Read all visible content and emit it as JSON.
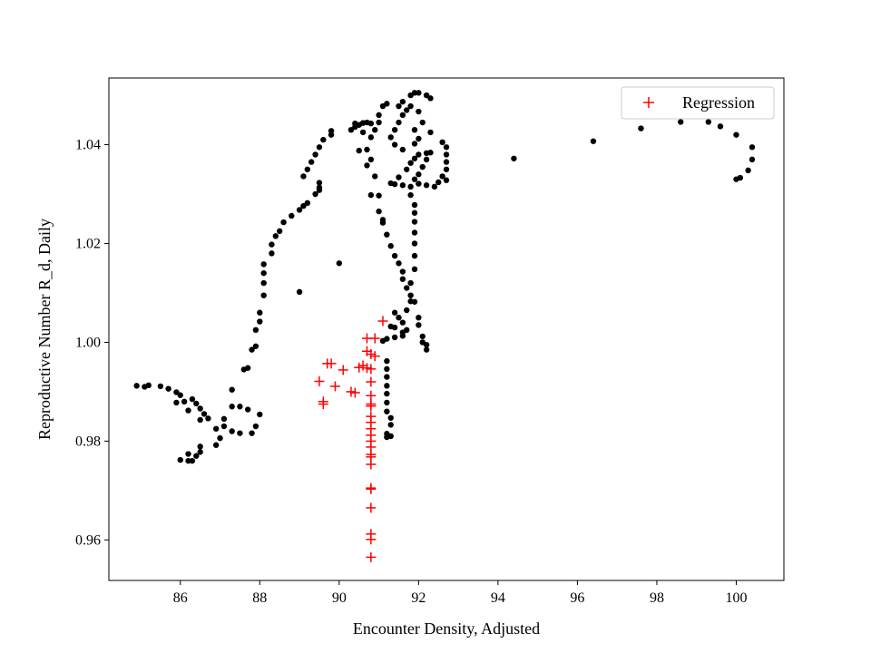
{
  "chart_data": {
    "type": "scatter",
    "title": "",
    "xlabel": "Encounter Density, Adjusted",
    "ylabel": "Reproductive Number R_d, Daily",
    "xlim": [
      84.2,
      101.2
    ],
    "ylim": [
      0.9518,
      1.0535
    ],
    "x_ticks": [
      86,
      88,
      90,
      92,
      94,
      96,
      98,
      100
    ],
    "x_tick_labels": [
      "86",
      "88",
      "90",
      "92",
      "94",
      "96",
      "98",
      "100"
    ],
    "y_ticks": [
      0.96,
      0.98,
      1.0,
      1.02,
      1.04
    ],
    "y_tick_labels": [
      "0.96",
      "0.98",
      "1.00",
      "1.02",
      "1.04"
    ],
    "grid": false,
    "legend": {
      "placement": "top-right",
      "entries": [
        "Regression"
      ]
    },
    "series": [
      {
        "marker": "dot",
        "color": "#000000",
        "points": [
          [
            84.9,
            0.9912
          ],
          [
            85.1,
            0.991
          ],
          [
            85.2,
            0.9913
          ],
          [
            85.5,
            0.9911
          ],
          [
            85.7,
            0.9906
          ],
          [
            85.9,
            0.9899
          ],
          [
            86.0,
            0.9893
          ],
          [
            86.1,
            0.988
          ],
          [
            85.9,
            0.9878
          ],
          [
            86.3,
            0.9885
          ],
          [
            86.4,
            0.9876
          ],
          [
            86.5,
            0.9866
          ],
          [
            86.6,
            0.9855
          ],
          [
            86.7,
            0.9846
          ],
          [
            86.5,
            0.9843
          ],
          [
            86.2,
            0.9862
          ],
          [
            86.0,
            0.9762
          ],
          [
            86.2,
            0.976
          ],
          [
            86.3,
            0.976
          ],
          [
            86.4,
            0.977
          ],
          [
            86.5,
            0.9778
          ],
          [
            86.2,
            0.9774
          ],
          [
            86.5,
            0.9789
          ],
          [
            86.9,
            0.9792
          ],
          [
            87.0,
            0.9806
          ],
          [
            87.1,
            0.983
          ],
          [
            87.3,
            0.982
          ],
          [
            87.5,
            0.9816
          ],
          [
            86.9,
            0.9825
          ],
          [
            87.1,
            0.9845
          ],
          [
            87.3,
            0.987
          ],
          [
            87.3,
            0.9904
          ],
          [
            87.5,
            0.987
          ],
          [
            87.7,
            0.9864
          ],
          [
            87.8,
            0.9816
          ],
          [
            87.9,
            0.983
          ],
          [
            88.0,
            0.9854
          ],
          [
            87.6,
            0.9945
          ],
          [
            87.7,
            0.9948
          ],
          [
            87.8,
            0.9985
          ],
          [
            87.9,
            0.9992
          ],
          [
            87.9,
            1.0025
          ],
          [
            88.0,
            1.0042
          ],
          [
            88.0,
            1.006
          ],
          [
            88.1,
            1.0095
          ],
          [
            88.1,
            1.012
          ],
          [
            88.1,
            1.014
          ],
          [
            88.1,
            1.0158
          ],
          [
            88.3,
            1.018
          ],
          [
            88.3,
            1.0198
          ],
          [
            88.4,
            1.0215
          ],
          [
            88.5,
            1.0225
          ],
          [
            88.6,
            1.0243
          ],
          [
            88.8,
            1.0256
          ],
          [
            89.0,
            1.0268
          ],
          [
            89.1,
            1.0276
          ],
          [
            89.2,
            1.0282
          ],
          [
            89.4,
            1.03
          ],
          [
            89.5,
            1.0308
          ],
          [
            89.5,
            1.0313
          ],
          [
            89.5,
            1.0323
          ],
          [
            89.1,
            1.0336
          ],
          [
            89.2,
            1.035
          ],
          [
            89.3,
            1.0365
          ],
          [
            89.4,
            1.038
          ],
          [
            89.5,
            1.0395
          ],
          [
            89.6,
            1.041
          ],
          [
            89.8,
            1.042
          ],
          [
            89.8,
            1.0428
          ],
          [
            90.3,
            1.043
          ],
          [
            90.4,
            1.0436
          ],
          [
            90.5,
            1.044
          ],
          [
            90.6,
            1.0444
          ],
          [
            90.7,
            1.0445
          ],
          [
            90.8,
            1.0443
          ],
          [
            90.4,
            1.0443
          ],
          [
            90.6,
            1.0425
          ],
          [
            90.7,
            1.039
          ],
          [
            90.8,
            1.037
          ],
          [
            90.9,
            1.0336
          ],
          [
            91.0,
            1.0297
          ],
          [
            91.1,
            1.0248
          ],
          [
            91.2,
            1.0218
          ],
          [
            91.3,
            1.0195
          ],
          [
            91.4,
            1.0175
          ],
          [
            91.5,
            1.016
          ],
          [
            91.6,
            1.0143
          ],
          [
            91.6,
            1.0128
          ],
          [
            91.7,
            1.011
          ],
          [
            91.8,
            1.0095
          ],
          [
            91.9,
            1.0082
          ],
          [
            92.0,
            1.005
          ],
          [
            92.0,
            1.0035
          ],
          [
            92.1,
            1.0012
          ],
          [
            92.1,
            1.0
          ],
          [
            92.2,
            0.9995
          ],
          [
            92.2,
            0.9985
          ],
          [
            91.2,
            0.9962
          ],
          [
            91.2,
            0.9946
          ],
          [
            91.2,
            0.993
          ],
          [
            91.2,
            0.9912
          ],
          [
            91.2,
            0.9896
          ],
          [
            91.2,
            0.9878
          ],
          [
            91.2,
            0.986
          ],
          [
            91.3,
            0.9847
          ],
          [
            91.3,
            0.9833
          ],
          [
            91.2,
            0.9815
          ],
          [
            91.2,
            0.9808
          ],
          [
            91.3,
            0.981
          ],
          [
            91.1,
            1.0003
          ],
          [
            91.2,
            1.0007
          ],
          [
            91.4,
            1.001
          ],
          [
            91.6,
            1.0013
          ],
          [
            91.6,
            1.002
          ],
          [
            91.7,
            1.0025
          ],
          [
            91.4,
            1.003
          ],
          [
            91.3,
            1.0032
          ],
          [
            91.6,
            1.004
          ],
          [
            91.5,
            1.005
          ],
          [
            91.4,
            1.006
          ],
          [
            91.7,
            1.0065
          ],
          [
            91.8,
            1.0083
          ],
          [
            91.8,
            1.012
          ],
          [
            91.9,
            1.0148
          ],
          [
            91.9,
            1.0175
          ],
          [
            91.9,
            1.02
          ],
          [
            91.9,
            1.0222
          ],
          [
            91.9,
            1.0244
          ],
          [
            91.9,
            1.0262
          ],
          [
            91.9,
            1.0278
          ],
          [
            91.8,
            1.0298
          ],
          [
            91.8,
            1.0315
          ],
          [
            91.6,
            1.0318
          ],
          [
            91.4,
            1.032
          ],
          [
            91.3,
            1.0322
          ],
          [
            91.5,
            1.0334
          ],
          [
            91.7,
            1.035
          ],
          [
            91.8,
            1.0363
          ],
          [
            91.9,
            1.0372
          ],
          [
            92.0,
            1.038
          ],
          [
            92.2,
            1.0383
          ],
          [
            92.3,
            1.0384
          ],
          [
            92.2,
            1.037
          ],
          [
            92.1,
            1.0355
          ],
          [
            92.0,
            1.034
          ],
          [
            91.9,
            1.033
          ],
          [
            92.0,
            1.0321
          ],
          [
            92.2,
            1.0318
          ],
          [
            92.4,
            1.0315
          ],
          [
            92.5,
            1.0324
          ],
          [
            92.6,
            1.0336
          ],
          [
            92.7,
            1.035
          ],
          [
            92.7,
            1.0365
          ],
          [
            92.7,
            1.038
          ],
          [
            92.7,
            1.0395
          ],
          [
            92.6,
            1.0405
          ],
          [
            92.3,
            1.0425
          ],
          [
            92.1,
            1.0445
          ],
          [
            92.0,
            1.0467
          ],
          [
            91.8,
            1.0478
          ],
          [
            91.7,
            1.047
          ],
          [
            91.6,
            1.046
          ],
          [
            91.5,
            1.0445
          ],
          [
            91.4,
            1.043
          ],
          [
            91.3,
            1.0415
          ],
          [
            91.4,
            1.04
          ],
          [
            91.6,
            1.039
          ],
          [
            91.9,
            1.043
          ],
          [
            91.9,
            1.0402
          ],
          [
            92.0,
            1.0412
          ],
          [
            91.8,
            1.05
          ],
          [
            91.9,
            1.0505
          ],
          [
            92.0,
            1.0505
          ],
          [
            92.2,
            1.05
          ],
          [
            92.3,
            1.0494
          ],
          [
            91.6,
            1.0487
          ],
          [
            91.5,
            1.0478
          ],
          [
            91.2,
            1.0483
          ],
          [
            91.1,
            1.0478
          ],
          [
            91.0,
            1.046
          ],
          [
            91.0,
            1.0445
          ],
          [
            90.9,
            1.043
          ],
          [
            90.8,
            1.0415
          ],
          [
            90.5,
            1.0388
          ],
          [
            90.7,
            1.0358
          ],
          [
            90.8,
            1.0298
          ],
          [
            91.0,
            1.0265
          ],
          [
            91.1,
            1.0242
          ],
          [
            90.0,
            1.016
          ],
          [
            89.0,
            1.0102
          ],
          [
            92.7,
            1.0328
          ],
          [
            94.4,
            1.0372
          ],
          [
            96.4,
            1.0407
          ],
          [
            97.6,
            1.0433
          ],
          [
            98.6,
            1.0446
          ],
          [
            99.3,
            1.0446
          ],
          [
            99.6,
            1.0437
          ],
          [
            100.0,
            1.042
          ],
          [
            100.4,
            1.0395
          ],
          [
            100.4,
            1.037
          ],
          [
            100.3,
            1.0348
          ],
          [
            100.1,
            1.0333
          ],
          [
            100.0,
            1.033
          ]
        ]
      },
      {
        "name": "Regression",
        "marker": "plus",
        "color": "#ff0000",
        "points": [
          [
            91.1,
            1.0043
          ],
          [
            90.7,
            1.0008
          ],
          [
            90.9,
            1.0008
          ],
          [
            90.7,
            0.9982
          ],
          [
            90.8,
            0.9976
          ],
          [
            90.9,
            0.9972
          ],
          [
            90.6,
            0.9953
          ],
          [
            90.7,
            0.9948
          ],
          [
            90.8,
            0.9946
          ],
          [
            90.5,
            0.9949
          ],
          [
            89.7,
            0.9957
          ],
          [
            89.8,
            0.9957
          ],
          [
            90.1,
            0.9944
          ],
          [
            89.5,
            0.9921
          ],
          [
            89.9,
            0.9911
          ],
          [
            90.3,
            0.99
          ],
          [
            90.4,
            0.9898
          ],
          [
            89.6,
            0.988
          ],
          [
            89.6,
            0.9875
          ],
          [
            90.8,
            0.992
          ],
          [
            90.8,
            0.9892
          ],
          [
            90.8,
            0.9875
          ],
          [
            90.8,
            0.9871
          ],
          [
            90.8,
            0.985
          ],
          [
            90.8,
            0.9838
          ],
          [
            90.8,
            0.9825
          ],
          [
            90.8,
            0.9812
          ],
          [
            90.8,
            0.98
          ],
          [
            90.8,
            0.9788
          ],
          [
            90.8,
            0.9773
          ],
          [
            90.8,
            0.9768
          ],
          [
            90.8,
            0.9753
          ],
          [
            90.8,
            0.9705
          ],
          [
            90.8,
            0.9703
          ],
          [
            90.8,
            0.9665
          ],
          [
            90.8,
            0.9612
          ],
          [
            90.8,
            0.9601
          ],
          [
            90.8,
            0.9565
          ]
        ]
      }
    ]
  }
}
